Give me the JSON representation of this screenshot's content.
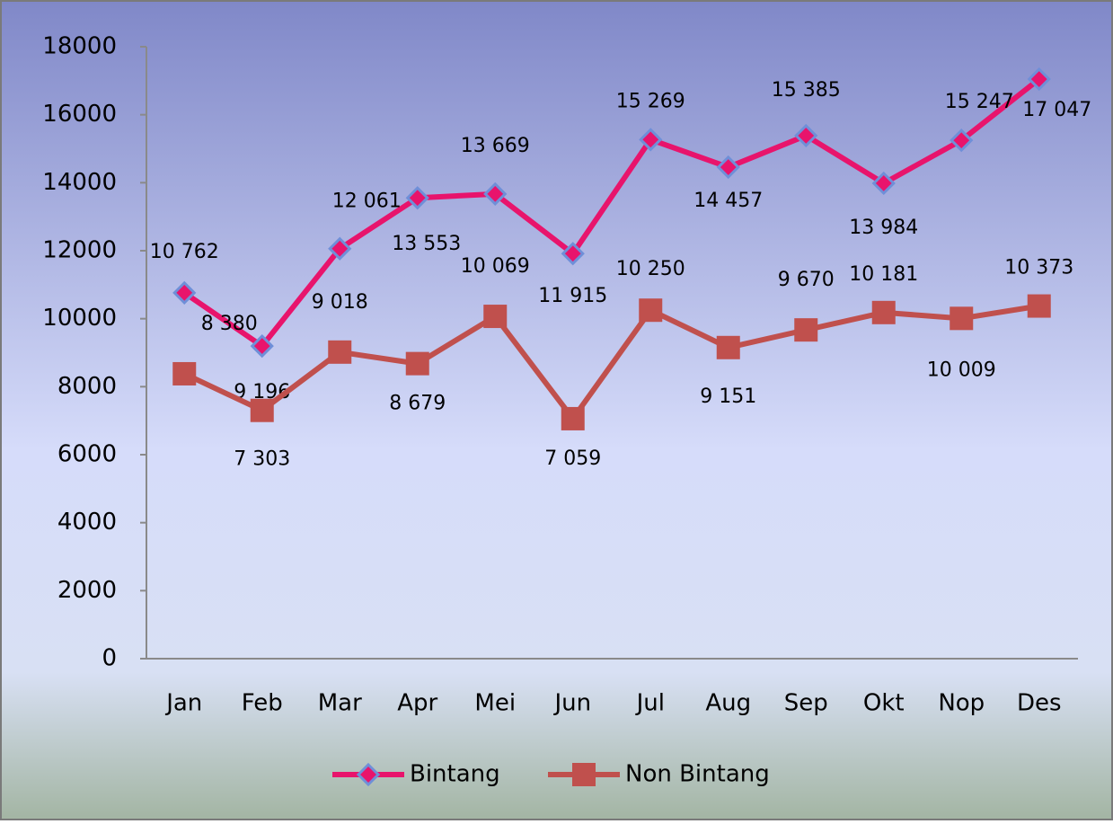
{
  "chart_data": {
    "type": "line",
    "categories": [
      "Jan",
      "Feb",
      "Mar",
      "Apr",
      "Mei",
      "Jun",
      "Jul",
      "Aug",
      "Sep",
      "Okt",
      "Nop",
      "Des"
    ],
    "series": [
      {
        "name": "Bintang",
        "color": "#e8146c",
        "marker": "diamond",
        "marker_color": "#6f8fd8",
        "values": [
          10762,
          9196,
          12061,
          13553,
          13669,
          11915,
          15269,
          14457,
          15385,
          13984,
          15247,
          17047
        ],
        "value_labels": [
          "10 762",
          "9 196",
          "12 061",
          "13 553",
          "13 669",
          "11 915",
          "15 269",
          "14 457",
          "15 385",
          "13 984",
          "15 247",
          "17 047"
        ]
      },
      {
        "name": "Non Bintang",
        "color": "#c0504d",
        "marker": "square",
        "marker_color": "#c0504d",
        "values": [
          8380,
          7303,
          9018,
          8679,
          10069,
          7059,
          10250,
          9151,
          9670,
          10181,
          10009,
          10373
        ],
        "value_labels": [
          "8 380",
          "7 303",
          "9 018",
          "8 679",
          "10 069",
          "7 059",
          "10 250",
          "9 151",
          "9 670",
          "10 181",
          "10 009",
          "10 373"
        ]
      }
    ],
    "ylim": [
      0,
      18000
    ],
    "yticks": [
      0,
      2000,
      4000,
      6000,
      8000,
      10000,
      12000,
      14000,
      16000,
      18000
    ],
    "grid": false,
    "legend": "bottom"
  }
}
